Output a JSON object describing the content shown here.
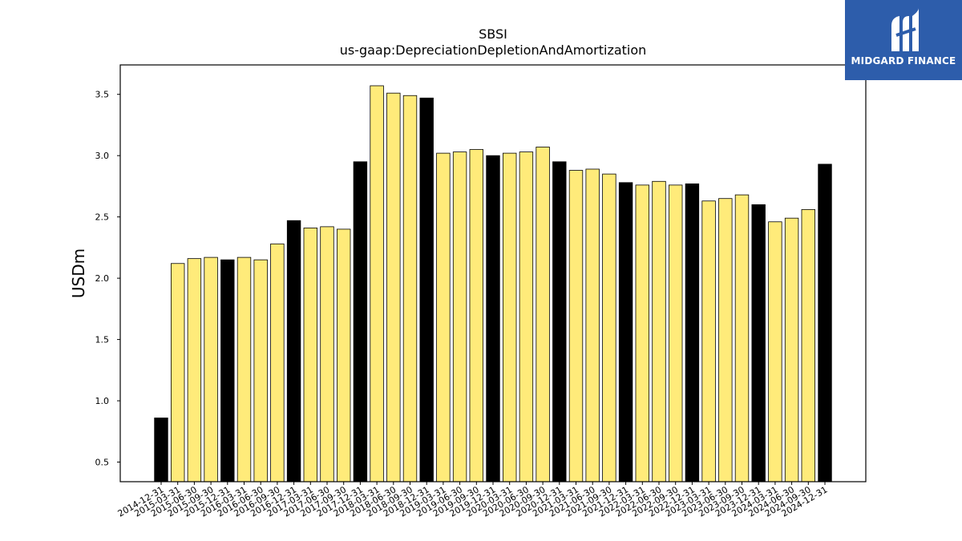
{
  "brand": {
    "name": "MIDGARD FINANCE",
    "bg": "#2d5dab",
    "mark": "midgard-logo-icon"
  },
  "chart_data": {
    "type": "bar",
    "title": "SBSI",
    "subtitle": "us-gaap:DepreciationDepletionAndAmortization",
    "ylabel": "USDm",
    "xlabel": "",
    "ylim": [
      0.34,
      3.74
    ],
    "yticks": [
      0.5,
      1.0,
      1.5,
      2.0,
      2.5,
      3.0,
      3.5
    ],
    "grid": false,
    "colors": {
      "annual": "#000000",
      "quarterly": "#ffeb7a",
      "edge": "#000000"
    },
    "categories": [
      "2014-12-31",
      "2015-03-31",
      "2015-06-30",
      "2015-09-30",
      "2015-12-31",
      "2016-03-31",
      "2016-06-30",
      "2016-09-30",
      "2016-12-31",
      "2017-03-31",
      "2017-06-30",
      "2017-09-30",
      "2017-12-31",
      "2018-03-31",
      "2018-06-30",
      "2018-09-30",
      "2018-12-31",
      "2019-03-31",
      "2019-06-30",
      "2019-09-30",
      "2019-12-31",
      "2020-03-31",
      "2020-06-30",
      "2020-09-30",
      "2020-12-31",
      "2021-03-31",
      "2021-06-30",
      "2021-09-30",
      "2021-12-31",
      "2022-03-31",
      "2022-06-30",
      "2022-09-30",
      "2022-12-31",
      "2023-03-31",
      "2023-06-30",
      "2023-09-30",
      "2023-12-31",
      "2024-03-31",
      "2024-06-30",
      "2024-09-30",
      "2024-12-31"
    ],
    "values": [
      0.86,
      2.12,
      2.16,
      2.17,
      2.15,
      2.17,
      2.15,
      2.28,
      2.47,
      2.41,
      2.42,
      2.4,
      2.95,
      3.57,
      3.51,
      3.49,
      3.47,
      3.02,
      3.03,
      3.05,
      3.0,
      3.02,
      3.03,
      3.07,
      2.95,
      2.88,
      2.89,
      2.85,
      2.78,
      2.76,
      2.79,
      2.76,
      2.77,
      2.63,
      2.65,
      2.68,
      2.6,
      2.46,
      2.49,
      2.56,
      2.93
    ]
  }
}
